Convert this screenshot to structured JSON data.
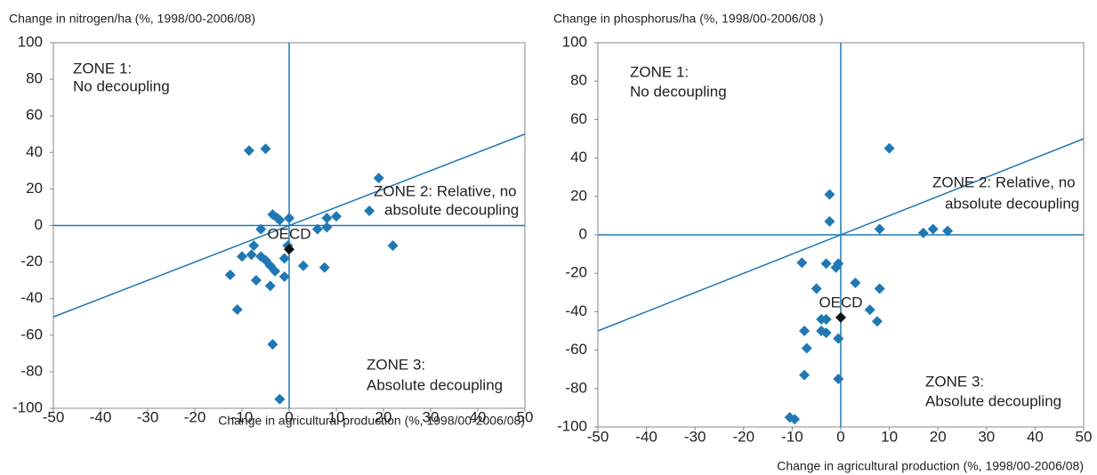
{
  "chart_data": [
    {
      "type": "scatter",
      "y_label": "Change in nitrogen/ha  (%, 1998/00-2006/08)",
      "x_label": "Change in agricultural  production  (%, 1998/00-2006/08)",
      "annotations": [
        "ZONE 1:",
        "No decoupling",
        "ZONE 2:  Relative, no",
        "absolute decoupling",
        "ZONE 3:",
        "Absolute  decoupling"
      ],
      "xlim": [
        -50,
        50
      ],
      "xticks": [
        -50,
        -40,
        -30,
        -20,
        -10,
        0,
        10,
        20,
        30,
        40,
        50
      ],
      "ylim": [
        -100,
        100
      ],
      "yticks": [
        -100,
        -80,
        -60,
        -40,
        -20,
        0,
        20,
        40,
        60,
        80,
        100
      ],
      "series": [
        {
          "color": "#1f78b4",
          "x": [
            -8.5,
            -5,
            19,
            17,
            10,
            8,
            8,
            6,
            22,
            -3.5,
            -2,
            0,
            -2.5,
            -6,
            -7.5,
            -8,
            -10,
            -6,
            -5,
            -4,
            -3,
            -1,
            -0.3,
            -12.5,
            -7,
            -4,
            -1,
            3,
            7.5,
            -11,
            -3.5,
            -2
          ],
          "values": [
            41,
            42,
            26,
            8,
            5,
            4,
            -1,
            -2,
            -11,
            6,
            3,
            4,
            4,
            -2,
            -11,
            -16,
            -17,
            -17,
            -19,
            -22,
            -25,
            -18,
            -11,
            -27,
            -30,
            -33,
            -28,
            -22,
            -23,
            -46,
            -65,
            -95
          ]
        },
        {
          "name": "OECD",
          "color": "#111111",
          "x": [
            0
          ],
          "values": [
            -13
          ]
        }
      ]
    },
    {
      "type": "scatter",
      "y_label": "Change in phosphorus/ha  (%, 1998/00-2006/08 )",
      "x_label": "Change in agricultural  production  (%,  1998/00-2006/08)",
      "annotations": [
        "ZONE 1:",
        "No decoupling",
        "ZONE 2:  Relative, no",
        "absolute decoupling",
        "ZONE 3:",
        "Absolute  decoupling"
      ],
      "xlim": [
        -50,
        50
      ],
      "xticks": [
        -50,
        -40,
        -30,
        -20,
        -10,
        0,
        10,
        20,
        30,
        40,
        50
      ],
      "ylim": [
        -100,
        100
      ],
      "yticks": [
        -100,
        -80,
        -60,
        -40,
        -20,
        0,
        20,
        40,
        60,
        80,
        100
      ],
      "series": [
        {
          "color": "#1f78b4",
          "x": [
            10,
            -2.3,
            -2.3,
            8,
            17,
            19,
            22,
            -8,
            -3,
            -0.5,
            -1,
            3,
            -5,
            8,
            6,
            -4,
            -3,
            7.5,
            -7.5,
            -4,
            -3,
            -0.5,
            -7,
            -7.5,
            -0.5,
            -10.5,
            -9.5
          ],
          "values": [
            45,
            21,
            7,
            3,
            1,
            3,
            2,
            -14.5,
            -15,
            -15,
            -17,
            -25,
            -28,
            -28,
            -39,
            -44,
            -44,
            -45,
            -50,
            -50,
            -51,
            -54,
            -59,
            -73,
            -75,
            -95,
            -96
          ]
        },
        {
          "name": "OECD",
          "color": "#111111",
          "x": [
            0
          ],
          "values": [
            -43
          ]
        }
      ]
    }
  ]
}
